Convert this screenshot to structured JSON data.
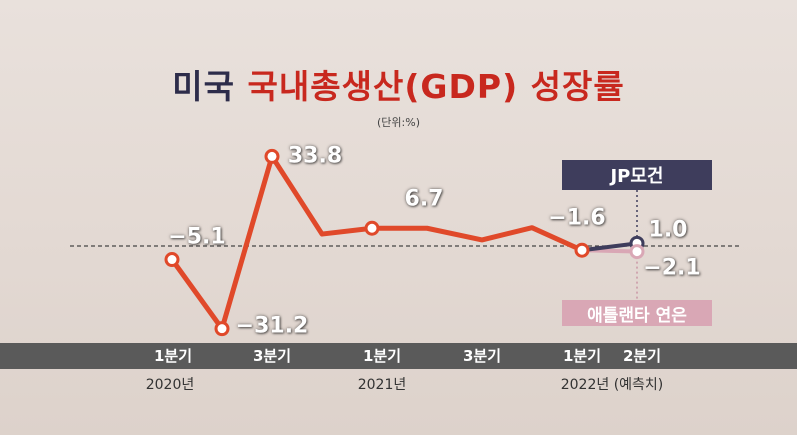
{
  "title_part1": "미국",
  "title_part2": "국내총생산(GDP) 성장률",
  "unit_label": "(단위:%)",
  "colors": {
    "main_line": "#e0492a",
    "jp_series": "#3e3d5c",
    "atlanta_series": "#d9a7b5",
    "axis_bar": "#5a5a5a"
  },
  "x_axis": {
    "quarter_labels": [
      "1분기",
      "3분기",
      "1분기",
      "3분기",
      "1분기",
      "2분기"
    ],
    "year_labels": [
      "2020년",
      "2021년",
      "2022년 (예측치)"
    ]
  },
  "chart_data": {
    "type": "line",
    "title": "미국 국내총생산(GDP) 성장률",
    "unit": "(단위:%)",
    "x": [
      "2020 Q1",
      "2020 Q2",
      "2020 Q3",
      "2020 Q4",
      "2021 Q1",
      "2021 Q2",
      "2021 Q3",
      "2021 Q4",
      "2022 Q1",
      "2022 Q2"
    ],
    "series": [
      {
        "name": "",
        "values": [
          -5.1,
          -31.2,
          33.8,
          4.5,
          6.7,
          6.7,
          2.3,
          6.9,
          -1.6,
          null
        ]
      },
      {
        "name": "JP모건",
        "values": [
          null,
          null,
          null,
          null,
          null,
          null,
          null,
          null,
          -1.6,
          1.0
        ]
      },
      {
        "name": "애틀랜타 연은",
        "values": [
          null,
          null,
          null,
          null,
          null,
          null,
          null,
          null,
          -1.6,
          -2.1
        ]
      }
    ],
    "data_labels": [
      {
        "series": 0,
        "x": "2020 Q1",
        "text": "−5.1"
      },
      {
        "series": 0,
        "x": "2020 Q2",
        "text": "−31.2"
      },
      {
        "series": 0,
        "x": "2020 Q3",
        "text": "33.8"
      },
      {
        "series": 0,
        "x": "2021 Q1",
        "text": "6.7"
      },
      {
        "series": 0,
        "x": "2022 Q1",
        "text": "−1.6"
      },
      {
        "series": 1,
        "x": "2022 Q2",
        "text": "1.0"
      },
      {
        "series": 2,
        "x": "2022 Q2",
        "text": "−2.1"
      }
    ],
    "marked_points": [
      "2020 Q1",
      "2020 Q2",
      "2020 Q3",
      "2021 Q1",
      "2022 Q1"
    ],
    "ylim": [
      -31.2,
      33.8
    ],
    "grid": false
  }
}
